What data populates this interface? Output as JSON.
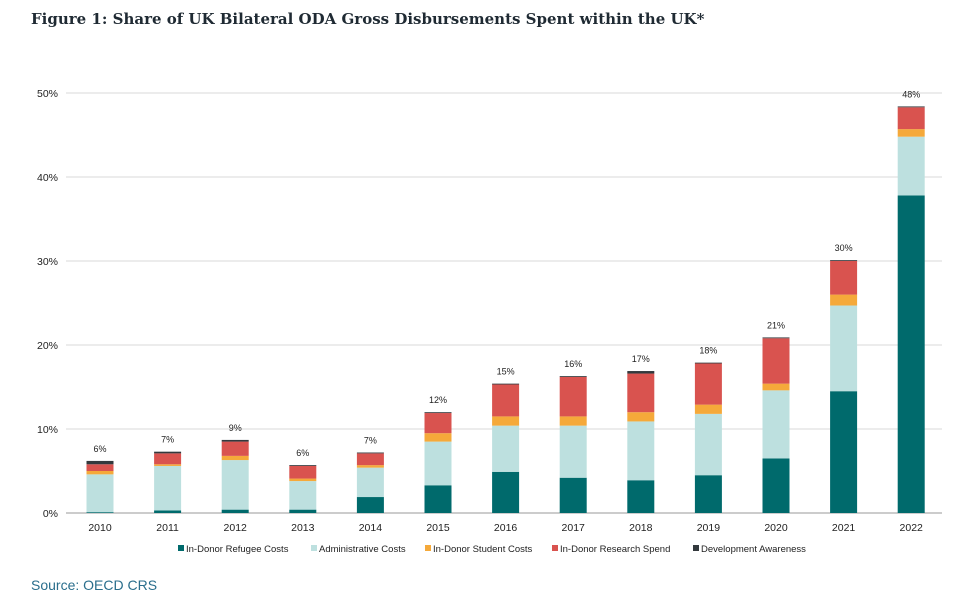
{
  "title": "Figure 1: Share of UK Bilateral ODA Gross Disbursements Spent within the UK*",
  "source": "Source: OECD CRS",
  "chart_data": {
    "type": "bar",
    "stacked": true,
    "categories": [
      "2010",
      "2011",
      "2012",
      "2013",
      "2014",
      "2015",
      "2016",
      "2017",
      "2018",
      "2019",
      "2020",
      "2021",
      "2022"
    ],
    "ylim": [
      0,
      50
    ],
    "yticks": [
      "0%",
      "10%",
      "20%",
      "30%",
      "40%",
      "50%"
    ],
    "grid": true,
    "legend_position": "bottom",
    "series": [
      {
        "name": "In-Donor Refugee Costs",
        "color": "#006a6c",
        "values": [
          0.1,
          0.3,
          0.4,
          0.4,
          1.9,
          3.3,
          4.9,
          4.2,
          3.9,
          4.5,
          6.5,
          14.5,
          37.8
        ]
      },
      {
        "name": "Administrative Costs",
        "color": "#bde0df",
        "values": [
          4.5,
          5.3,
          5.9,
          3.4,
          3.5,
          5.2,
          5.5,
          6.2,
          7.0,
          7.3,
          8.1,
          10.2,
          7.0
        ]
      },
      {
        "name": "In-Donor Student Costs",
        "color": "#f5a93a",
        "values": [
          0.4,
          0.2,
          0.5,
          0.3,
          0.3,
          1.0,
          1.1,
          1.1,
          1.1,
          1.1,
          0.8,
          1.3,
          0.9
        ]
      },
      {
        "name": "In-Donor Research Spend",
        "color": "#d9534f",
        "values": [
          0.8,
          1.3,
          1.7,
          1.5,
          1.4,
          2.4,
          3.8,
          4.7,
          4.6,
          4.9,
          5.4,
          4.0,
          2.6
        ]
      },
      {
        "name": "Development Awareness",
        "color": "#33393d",
        "values": [
          0.4,
          0.2,
          0.2,
          0.1,
          0.1,
          0.1,
          0.1,
          0.1,
          0.3,
          0.1,
          0.1,
          0.1,
          0.1
        ]
      }
    ],
    "total_labels": [
      "6%",
      "7%",
      "9%",
      "6%",
      "7%",
      "12%",
      "15%",
      "16%",
      "17%",
      "18%",
      "21%",
      "30%",
      "48%"
    ]
  }
}
